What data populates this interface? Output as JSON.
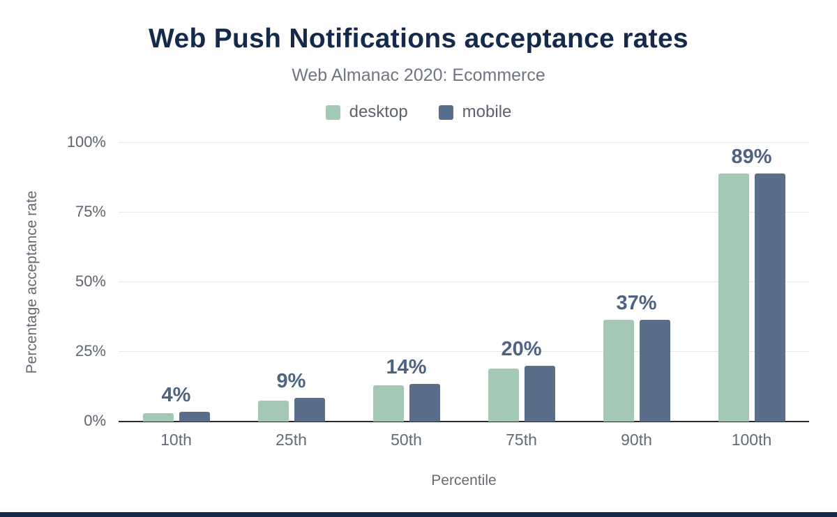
{
  "page": {
    "title": "Web Push Notifications acceptance rates",
    "subtitle": "Web Almanac 2020: Ecommerce"
  },
  "colors": {
    "title": "#152a4a",
    "desktop": "#a3c9b4",
    "mobile": "#5a6e8c",
    "value_label": "#4d6382",
    "footer_bar": "#152a4a"
  },
  "chart_data": {
    "type": "bar",
    "title": "Web Push Notifications acceptance rates",
    "subtitle": "Web Almanac 2020: Ecommerce",
    "categories": [
      "10th",
      "25th",
      "50th",
      "75th",
      "90th",
      "100th"
    ],
    "series": [
      {
        "name": "desktop",
        "color": "#a3c9b4",
        "values": [
          3,
          7.5,
          13,
          19,
          36.5,
          89
        ]
      },
      {
        "name": "mobile",
        "color": "#5a6e8c",
        "values": [
          3.5,
          8.5,
          13.5,
          20,
          36.5,
          89
        ]
      }
    ],
    "value_labels": [
      "4%",
      "9%",
      "14%",
      "20%",
      "37%",
      "89%"
    ],
    "xlabel": "Percentile",
    "ylabel": "Percentage acceptance rate",
    "ylim": [
      0,
      100
    ],
    "yticks": [
      "0%",
      "25%",
      "50%",
      "75%",
      "100%"
    ],
    "grid": true,
    "legend_position": "top"
  }
}
